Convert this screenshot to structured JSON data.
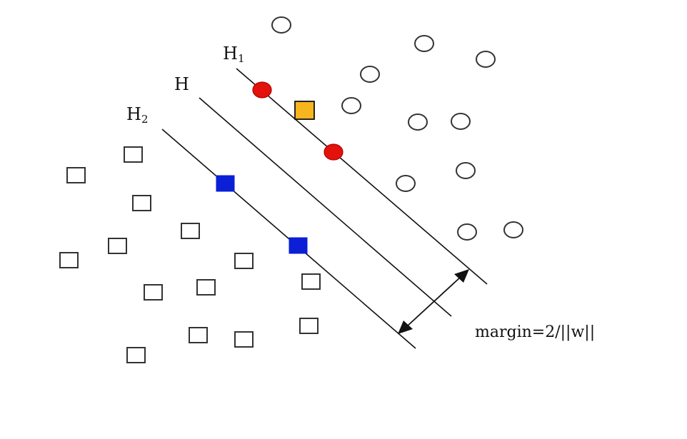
{
  "labels": {
    "h1": {
      "base": "H",
      "sub": "1"
    },
    "h": "H",
    "h2": {
      "base": "H",
      "sub": "2"
    },
    "margin": "margin=2/||w||"
  },
  "colors": {
    "line": "#111111",
    "circle_stroke": "#333333",
    "square_stroke": "#333333",
    "support_circle": "#e3120b",
    "support_square": "#0a1fd6",
    "misclassified_square": "#f7b51e"
  },
  "marker_names": {
    "class_a": "open-circle",
    "class_b": "open-square",
    "support_a": "red-filled-circle",
    "support_b": "blue-filled-square",
    "highlighted": "orange-filled-square"
  }
}
